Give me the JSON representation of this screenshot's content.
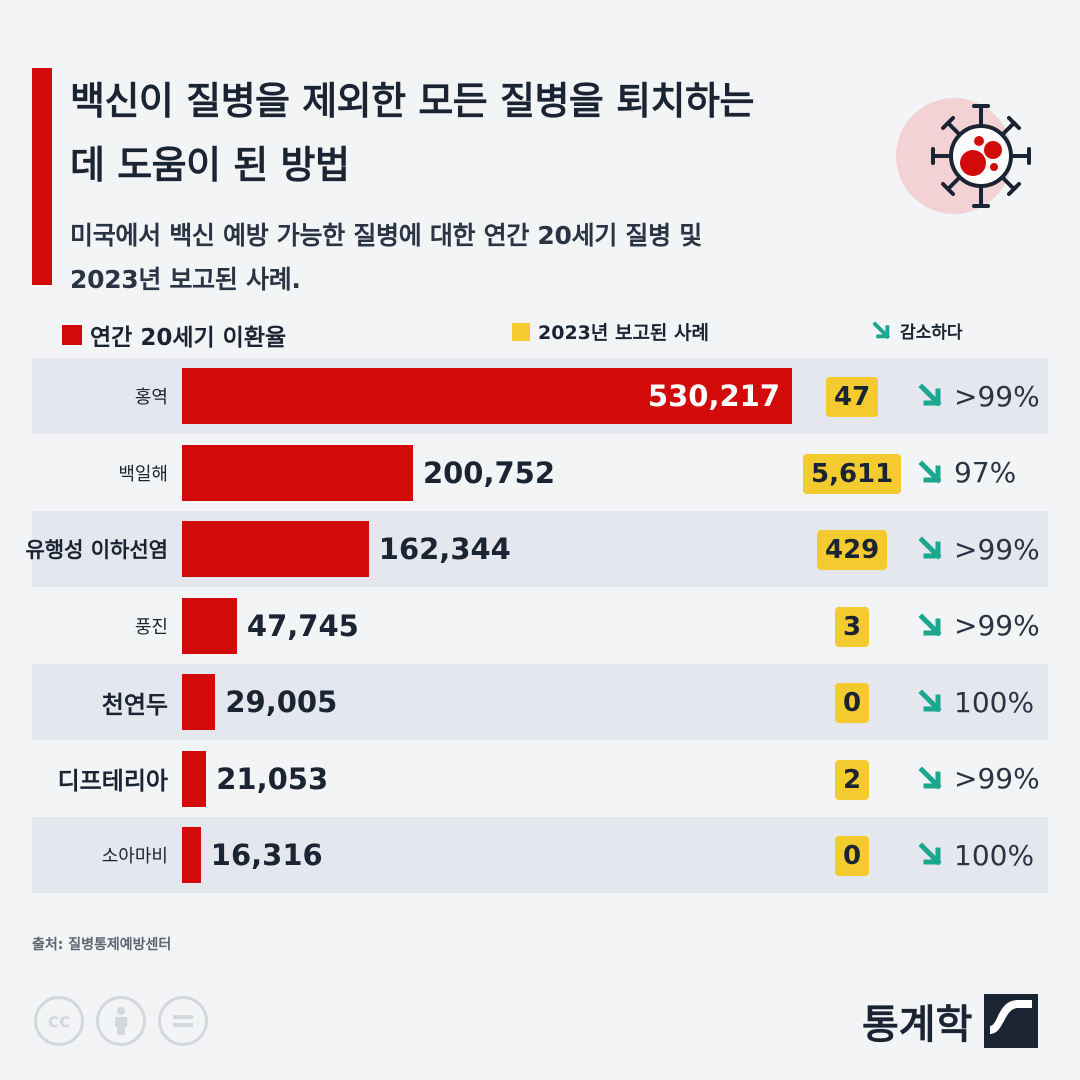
{
  "header": {
    "title_line1": "백신이 질병을 제외한 모든 질병을 퇴치하는",
    "title_line2": "데 도움이 된 방법",
    "subtitle_line1": "미국에서 백신 예방 가능한 질병에 대한 연간 20세기 질병 및",
    "subtitle_line2": "2023년 보고된 사례."
  },
  "legend": {
    "annual": "연간 20세기 이환율",
    "reported": "2023년 보고된 사례",
    "decrease": "감소하다"
  },
  "colors": {
    "bar": "#d20a0a",
    "cases": "#f3cb2e",
    "arrow": "#1aa68f",
    "row_shade": "#e4e7ed"
  },
  "chart_data": {
    "type": "bar",
    "orientation": "horizontal",
    "categories": [
      "홍역",
      "백일해",
      "유행성 이하선염",
      "풍진",
      "천연두",
      "디프테리아",
      "소아마비"
    ],
    "series": [
      {
        "name": "연간 20세기 이환율",
        "values": [
          530217,
          200752,
          162344,
          47745,
          29005,
          21053,
          16316
        ],
        "labels": [
          "530,217",
          "200,752",
          "162,344",
          "47,745",
          "29,005",
          "21,053",
          "16,316"
        ]
      },
      {
        "name": "2023년 보고된 사례",
        "values": [
          47,
          5611,
          429,
          3,
          0,
          2,
          0
        ],
        "labels": [
          "47",
          "5,611",
          "429",
          "3",
          "0",
          "2",
          "0"
        ]
      },
      {
        "name": "감소하다",
        "labels": [
          ">99%",
          "97%",
          ">99%",
          ">99%",
          "100%",
          ">99%",
          "100%"
        ]
      }
    ],
    "xlim": [
      0,
      530217
    ]
  },
  "footer": {
    "source": "출처: 질병통제예방센터",
    "brand": "통계학",
    "license_icons": [
      "cc-icon",
      "attribution-icon",
      "no-derivatives-icon"
    ]
  }
}
